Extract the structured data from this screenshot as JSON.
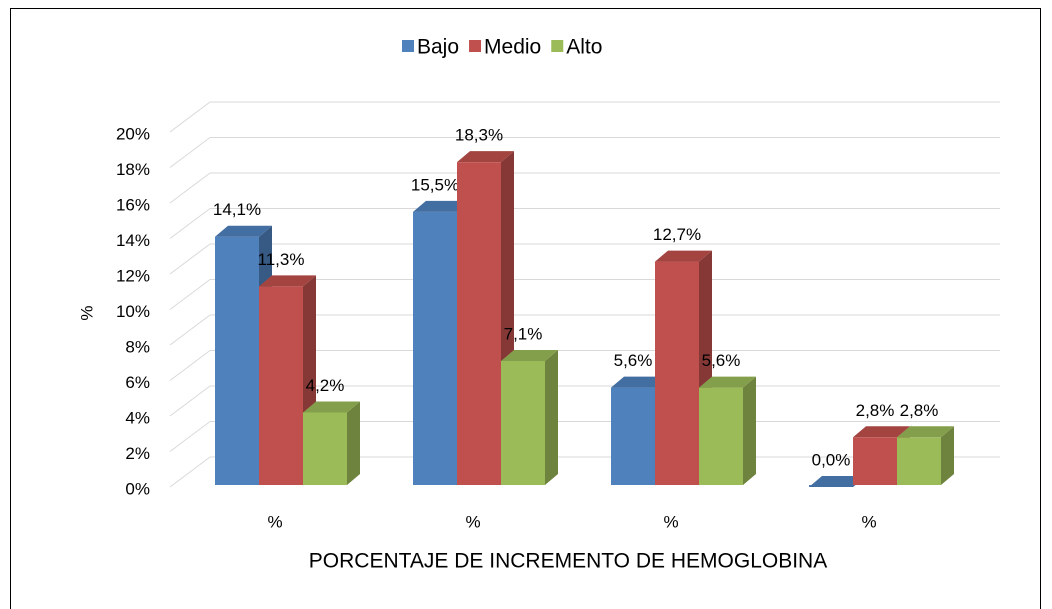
{
  "chart_data": {
    "type": "bar3d",
    "x_label": "PORCENTAJE DE INCREMENTO DE HEMOGLOBINA",
    "y_label": "%",
    "categories": [
      "%",
      "%",
      "%",
      "%"
    ],
    "series": [
      {
        "name": "Bajo",
        "color": "#4f81bd",
        "values": [
          14.1,
          15.5,
          5.6,
          0.0
        ],
        "value_labels": [
          "14,1%",
          "15,5%",
          "5,6%",
          "0,0%"
        ]
      },
      {
        "name": "Medio",
        "color": "#c0504d",
        "values": [
          11.3,
          18.3,
          12.7,
          2.8
        ],
        "value_labels": [
          "11,3%",
          "18,3%",
          "12,7%",
          "2,8%"
        ]
      },
      {
        "name": "Alto",
        "color": "#9bbb59",
        "values": [
          4.2,
          7.1,
          5.6,
          2.8
        ],
        "value_labels": [
          "4,2%",
          "7,1%",
          "5,6%",
          "2,8%"
        ]
      }
    ],
    "ylim": [
      0,
      20
    ],
    "yticks": [
      {
        "value": 0,
        "label": "0%"
      },
      {
        "value": 2,
        "label": "2%"
      },
      {
        "value": 4,
        "label": "4%"
      },
      {
        "value": 6,
        "label": "6%"
      },
      {
        "value": 8,
        "label": "8%"
      },
      {
        "value": 10,
        "label": "10%"
      },
      {
        "value": 12,
        "label": "12%"
      },
      {
        "value": 14,
        "label": "14%"
      },
      {
        "value": 16,
        "label": "16%"
      },
      {
        "value": 18,
        "label": "18%"
      },
      {
        "value": 20,
        "label": "20%"
      }
    ],
    "grid": true,
    "legend": "top"
  }
}
